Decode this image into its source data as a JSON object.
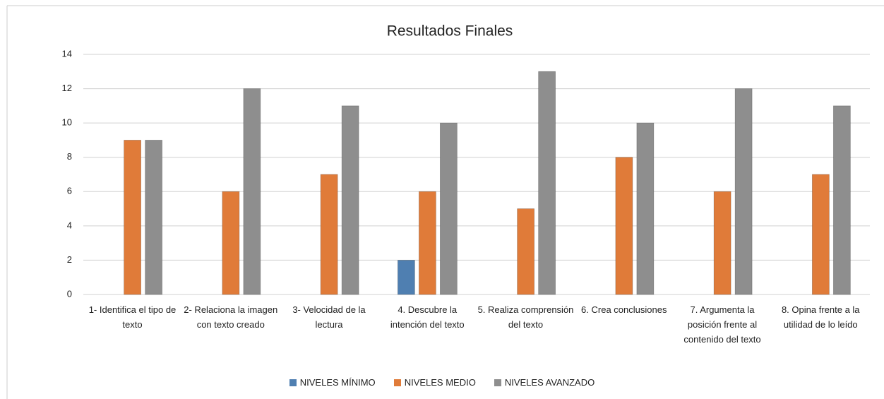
{
  "chart_data": {
    "type": "bar",
    "title": "Resultados Finales",
    "categories": [
      "1- Identifica el tipo de texto",
      "2- Relaciona la imagen con texto creado",
      "3- Velocidad de la lectura",
      "4. Descubre la intención del texto",
      "5. Realiza comprensión del texto",
      "6. Crea conclusiones",
      "7. Argumenta la posición frente al contenido del texto",
      "8. Opina frente a la utilidad de lo leído"
    ],
    "series": [
      {
        "name": "NIVELES MÍNIMO",
        "color": "#4f7fb1",
        "values": [
          0,
          0,
          0,
          2,
          0,
          0,
          0,
          0
        ]
      },
      {
        "name": "NIVELES MEDIO",
        "color": "#e07b39",
        "values": [
          9,
          6,
          7,
          6,
          5,
          8,
          6,
          7
        ]
      },
      {
        "name": "NIVELES AVANZADO",
        "color": "#8e8e8e",
        "values": [
          9,
          12,
          11,
          10,
          13,
          10,
          12,
          11
        ]
      }
    ],
    "ylim": [
      0,
      14
    ],
    "yticks": [
      0,
      2,
      4,
      6,
      8,
      10,
      12,
      14
    ],
    "grid": true,
    "legend": "bottom"
  }
}
